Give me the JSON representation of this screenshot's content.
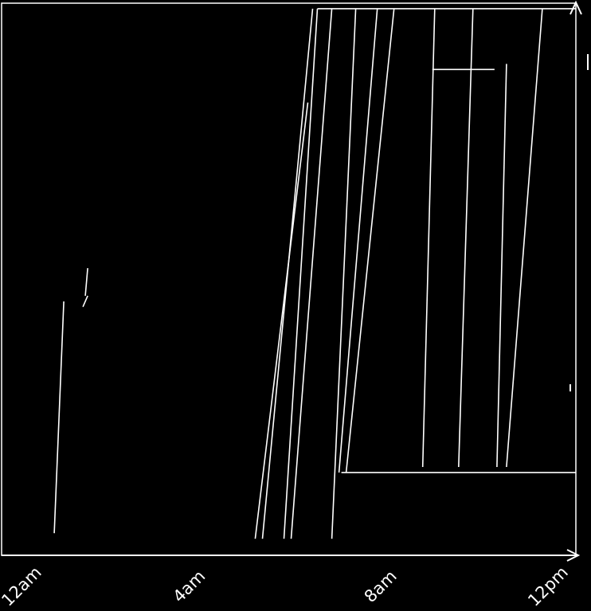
{
  "chart_data": {
    "type": "line",
    "title": "",
    "xlabel": "",
    "ylabel": "",
    "style": {
      "background": "#000000",
      "stroke": "#ffffff"
    },
    "grid": false,
    "legend": "none",
    "x_axis": {
      "unit": "hours_since_midnight",
      "range": [
        0,
        12
      ],
      "ticks": [
        {
          "value": 0,
          "label": "12am"
        },
        {
          "value": 4,
          "label": "4am"
        },
        {
          "value": 8,
          "label": "8am"
        },
        {
          "value": 12,
          "label": "12pm"
        }
      ]
    },
    "y_axis": {
      "range": [
        0,
        1
      ],
      "tick_labels": []
    },
    "series": [
      {
        "points": [
          [
            1.1,
            0.04
          ],
          [
            1.3,
            0.46
          ]
        ]
      },
      {
        "points": [
          [
            1.7,
            0.45
          ],
          [
            1.8,
            0.47
          ]
        ]
      },
      {
        "points": [
          [
            1.75,
            0.47
          ],
          [
            1.8,
            0.52
          ]
        ]
      },
      {
        "points": [
          [
            5.3,
            0.03
          ],
          [
            6.4,
            0.82
          ]
        ]
      },
      {
        "points": [
          [
            5.45,
            0.03
          ],
          [
            6.5,
            0.99
          ]
        ]
      },
      {
        "points": [
          [
            5.9,
            0.03
          ],
          [
            6.6,
            0.99
          ]
        ]
      },
      {
        "points": [
          [
            6.05,
            0.03
          ],
          [
            6.9,
            0.99
          ]
        ]
      },
      {
        "points": [
          [
            6.9,
            0.03
          ],
          [
            7.4,
            0.99
          ]
        ]
      },
      {
        "points": [
          [
            7.05,
            0.15
          ],
          [
            7.85,
            0.99
          ]
        ]
      },
      {
        "points": [
          [
            7.2,
            0.15
          ],
          [
            8.2,
            0.99
          ]
        ]
      },
      {
        "points": [
          [
            8.8,
            0.16
          ],
          [
            9.05,
            0.99
          ]
        ]
      },
      {
        "points": [
          [
            9.55,
            0.16
          ],
          [
            9.85,
            0.99
          ]
        ]
      },
      {
        "points": [
          [
            10.35,
            0.16
          ],
          [
            10.55,
            0.89
          ]
        ]
      },
      {
        "points": [
          [
            10.55,
            0.16
          ],
          [
            11.3,
            0.99
          ]
        ]
      }
    ],
    "reference_lines": [
      {
        "type": "horizontal",
        "y": 0.99,
        "x_range": [
          6.6,
          12
        ]
      },
      {
        "type": "horizontal",
        "y": 0.15,
        "x_range": [
          7.1,
          12
        ]
      },
      {
        "type": "horizontal",
        "y": 0.88,
        "x_range": [
          9.0,
          10.3
        ]
      }
    ]
  }
}
